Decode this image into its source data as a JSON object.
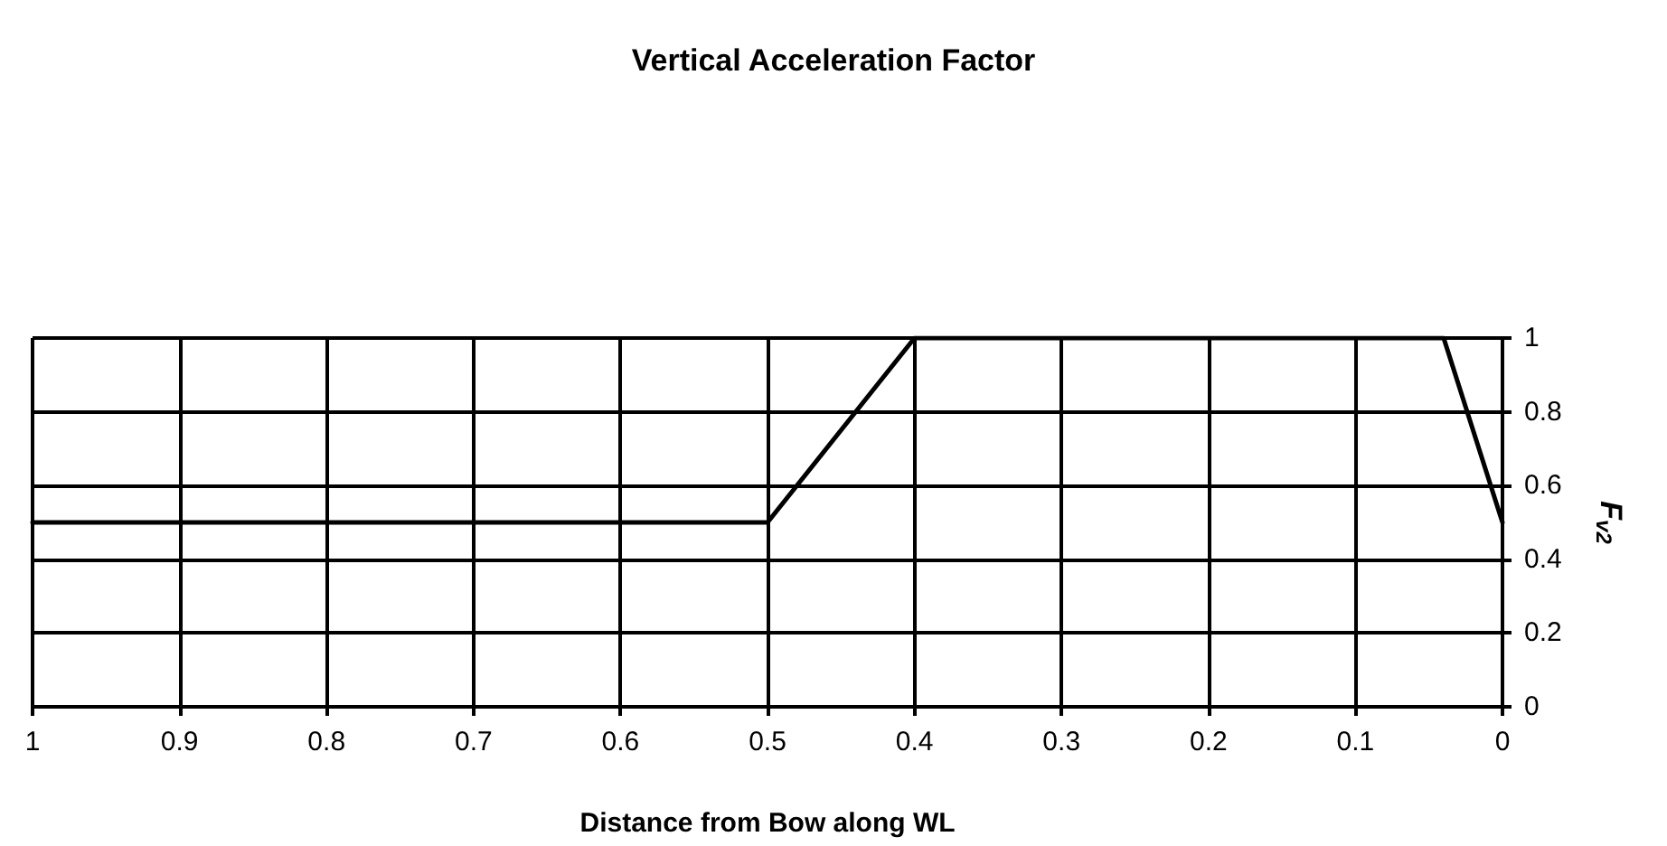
{
  "chart_data": {
    "type": "line",
    "title": "Vertical Acceleration Factor",
    "xlabel": "Distance from Bow along WL",
    "ylabel": "F$_{v2}$",
    "x": [
      1,
      0.5,
      0.4,
      0.04,
      0
    ],
    "series": [
      {
        "color": "#000000",
        "values": [
          0.5,
          0.5,
          1,
          1,
          0.5
        ]
      }
    ],
    "xlim": [
      1,
      0
    ],
    "xticks": [
      1,
      0.9,
      0.8,
      0.7,
      0.6,
      0.5,
      0.4,
      0.3,
      0.2,
      0.1,
      0
    ],
    "ylim": [
      0,
      1
    ],
    "yticks": [
      0,
      0.2,
      0.4,
      0.6,
      0.8,
      1
    ],
    "grid": true,
    "marker": "none",
    "line_style": "solid"
  }
}
